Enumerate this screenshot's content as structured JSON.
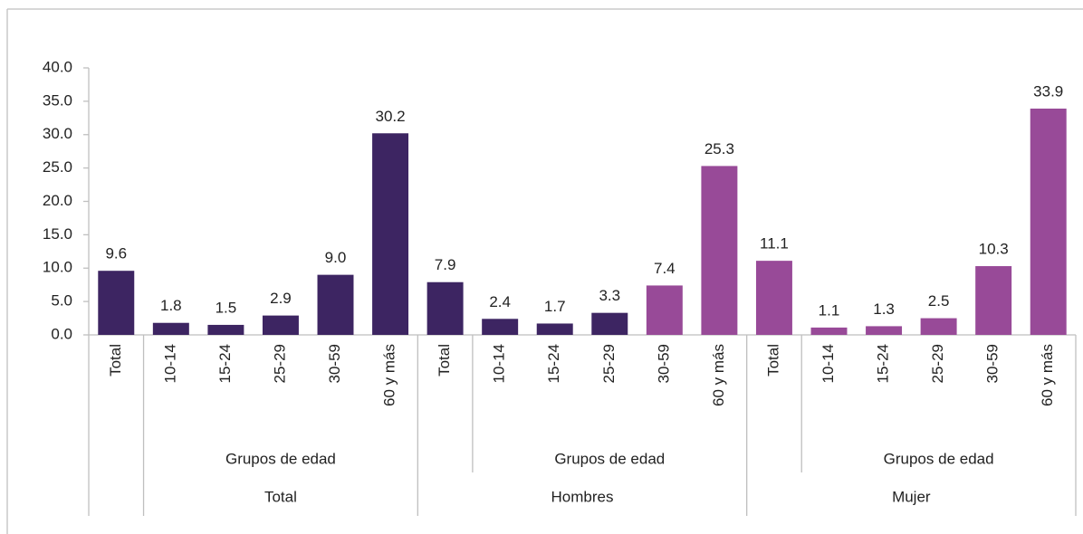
{
  "chart_data": {
    "type": "bar",
    "categories": [
      "Total",
      "10-14",
      "15-24",
      "25-29",
      "30-59",
      "60 y más",
      "Total",
      "10-14",
      "15-24",
      "25-29",
      "30-59",
      "60 y más",
      "Total",
      "10-14",
      "15-24",
      "25-29",
      "30-59",
      "60 y más"
    ],
    "values": [
      9.6,
      1.8,
      1.5,
      2.9,
      9.0,
      30.2,
      7.9,
      2.4,
      1.7,
      3.3,
      7.4,
      25.3,
      11.1,
      1.1,
      1.3,
      2.5,
      10.3,
      33.9
    ],
    "value_labels": [
      "9.6",
      "1.8",
      "1.5",
      "2.9",
      "9.0",
      "30.2",
      "7.9",
      "2.4",
      "1.7",
      "3.3",
      "7.4",
      "25.3",
      "11.1",
      "1.1",
      "1.3",
      "2.5",
      "10.3",
      "33.9"
    ],
    "colors": [
      "#3d2562",
      "#3d2562",
      "#3d2562",
      "#3d2562",
      "#3d2562",
      "#3d2562",
      "#3d2562",
      "#3d2562",
      "#3d2562",
      "#3d2562",
      "#984a98",
      "#984a98",
      "#984a98",
      "#984a98",
      "#984a98",
      "#984a98",
      "#984a98",
      "#984a98"
    ],
    "groups": [
      {
        "label": "Total",
        "sublabel": "Grupos de edad"
      },
      {
        "label": "Hombres",
        "sublabel": "Grupos de edad"
      },
      {
        "label": "Mujer",
        "sublabel": "Grupos de edad"
      }
    ],
    "ylim": [
      0,
      40
    ],
    "yticks": [
      {
        "value": 0,
        "label": "0.0"
      },
      {
        "value": 5,
        "label": "5.0"
      },
      {
        "value": 10,
        "label": "10.0"
      },
      {
        "value": 15,
        "label": "15.0"
      },
      {
        "value": 20,
        "label": "20.0"
      },
      {
        "value": 25,
        "label": "25.0"
      },
      {
        "value": 30,
        "label": "30.0"
      },
      {
        "value": 35,
        "label": "35.0"
      },
      {
        "value": 40,
        "label": "40.0"
      }
    ],
    "grid": false
  }
}
